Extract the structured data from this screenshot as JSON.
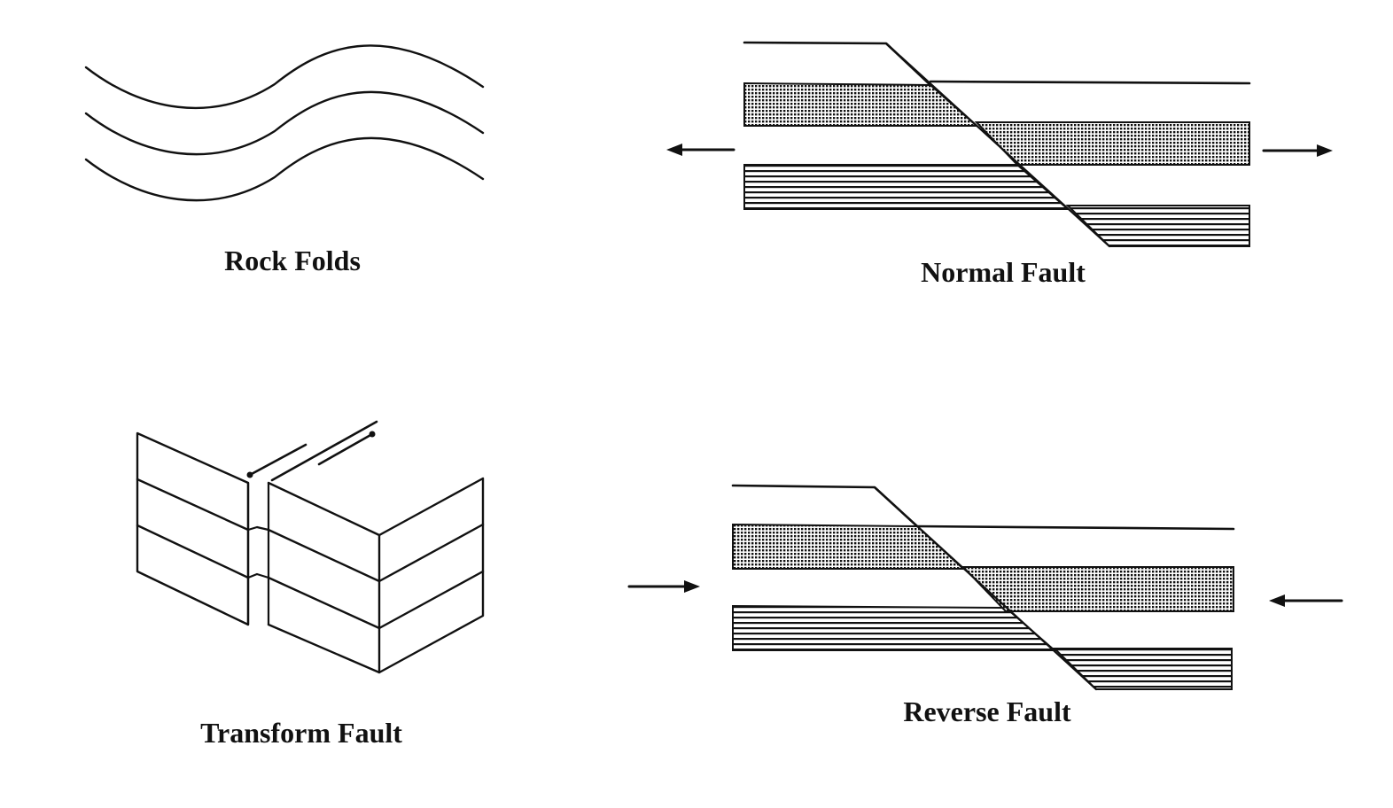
{
  "panels": {
    "rock_folds": {
      "caption": "Rock Folds"
    },
    "normal_fault": {
      "caption": "Normal Fault",
      "arrows": "pointing outward (extension)"
    },
    "transform_fault": {
      "caption": "Transform Fault"
    },
    "reverse_fault": {
      "caption": "Reverse Fault",
      "arrows": "pointing inward (compression)"
    }
  },
  "colors": {
    "ink": "#111111",
    "paper": "#ffffff"
  }
}
